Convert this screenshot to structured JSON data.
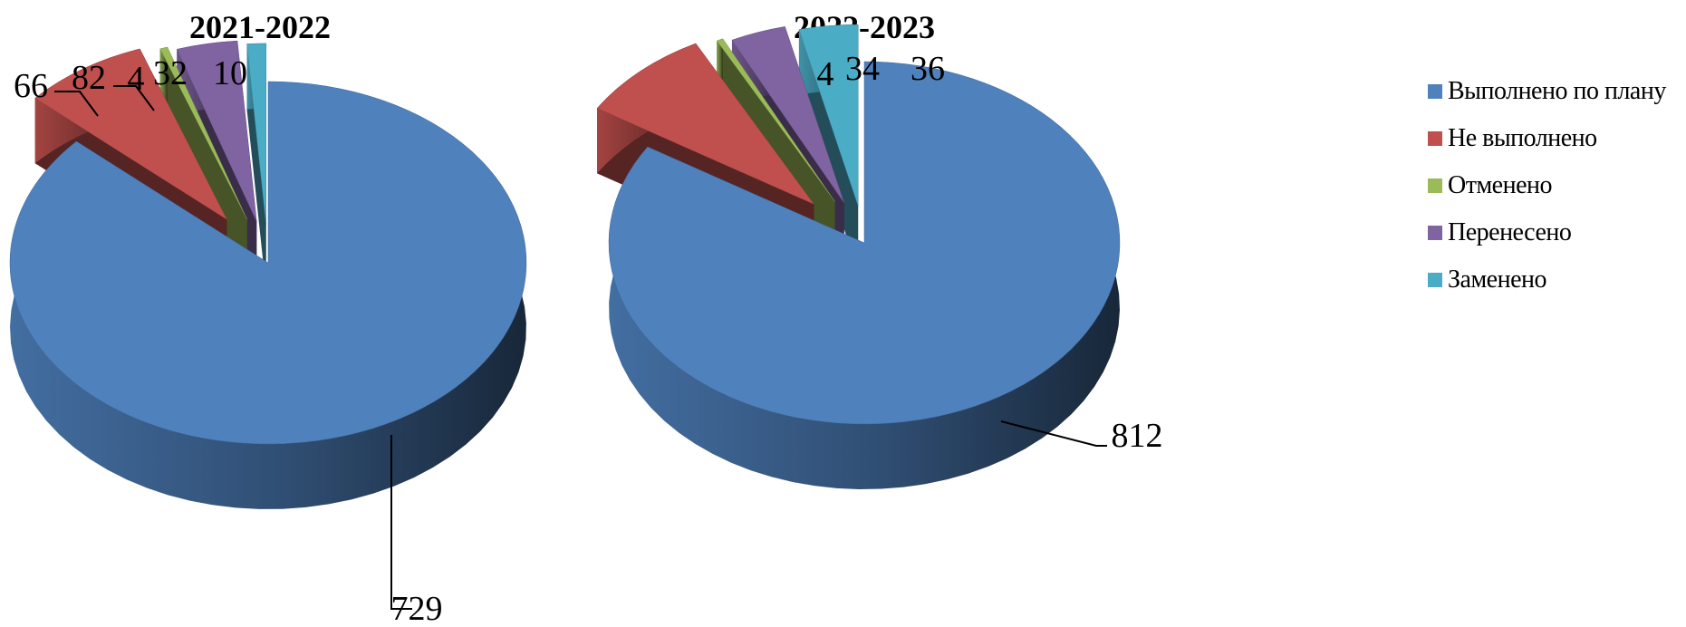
{
  "chart_data": [
    {
      "type": "pie",
      "title": "2021-2022",
      "categories": [
        "Выполнено по плану",
        "Не выполнено",
        "Отменено",
        "Перенесено",
        "Заменено"
      ],
      "values": [
        729,
        66,
        4,
        32,
        10
      ],
      "value_labels": [
        "729",
        "66",
        "4",
        "32",
        "10"
      ]
    },
    {
      "type": "pie",
      "title": "2022-2023",
      "categories": [
        "Выполнено по плану",
        "Не выполнено",
        "Отменено",
        "Перенесено",
        "Заменено"
      ],
      "values": [
        812,
        82,
        4,
        34,
        36
      ],
      "value_labels": [
        "812",
        "82",
        "4",
        "34",
        "36"
      ]
    }
  ],
  "legend": {
    "position": "right",
    "items": [
      {
        "label": "Выполнено по плану",
        "color": "#4F81BD"
      },
      {
        "label": "Не выполнено",
        "color": "#C0504D"
      },
      {
        "label": "Отменено",
        "color": "#9BBB59"
      },
      {
        "label": "Перенесено",
        "color": "#8064A2"
      },
      {
        "label": "Заменено",
        "color": "#4BACC6"
      }
    ]
  },
  "colors": [
    "#4F81BD",
    "#C0504D",
    "#9BBB59",
    "#8064A2",
    "#4BACC6"
  ]
}
